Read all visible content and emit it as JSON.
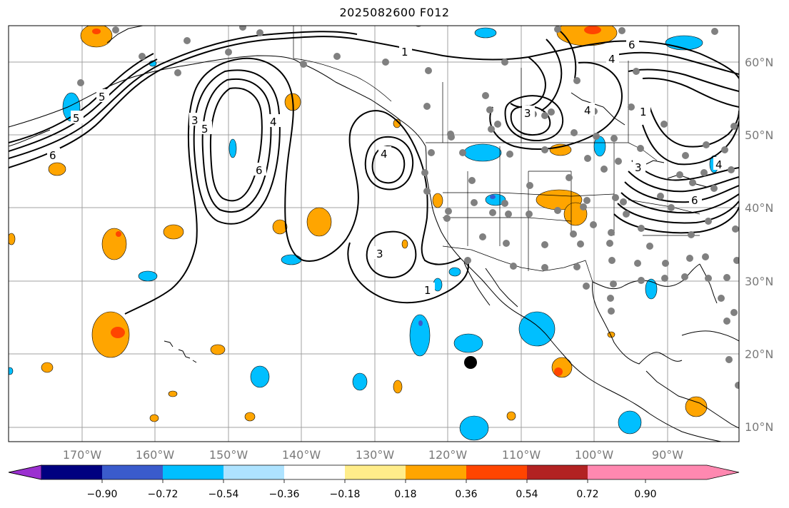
{
  "title": "2025082600 F012",
  "map": {
    "lat_labels": [
      "10°N",
      "20°N",
      "30°N",
      "40°N",
      "50°N",
      "60°N"
    ],
    "lon_labels": [
      "170°W",
      "160°W",
      "150°W",
      "140°W",
      "130°W",
      "120°W",
      "110°W",
      "100°W",
      "90°W"
    ],
    "contour_labels": [
      "1",
      "6",
      "4",
      "5",
      "5",
      "6",
      "3",
      "4",
      "4",
      "1",
      "5",
      "3",
      "6",
      "4",
      "3",
      "1",
      "3",
      "4",
      "6"
    ],
    "colors": {
      "land_line": "#000000",
      "grid": "#a0a0a0",
      "station": "#808080",
      "marker": "#000000"
    }
  },
  "colorbar": {
    "tick_labels": [
      "−0.90",
      "−0.72",
      "−0.54",
      "−0.36",
      "−0.18",
      "0.18",
      "0.36",
      "0.54",
      "0.72",
      "0.90"
    ],
    "colors": [
      "#9b30d0",
      "#000080",
      "#3a5bcc",
      "#00bfff",
      "#aee3ff",
      "#ffffff",
      "#ffed8a",
      "#ffa500",
      "#ff4500",
      "#b22222",
      "#ff88b0"
    ]
  }
}
